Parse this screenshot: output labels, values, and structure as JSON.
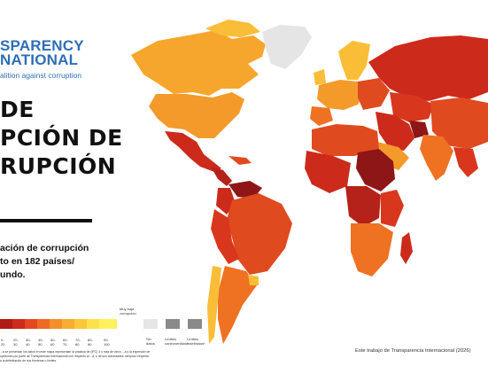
{
  "brand": {
    "line1": "SPARENCY",
    "line2": "NATIONAL",
    "tagline": "alition against corruption"
  },
  "title": {
    "line1": "DE",
    "line2": "PCIÓN DE",
    "line3": "RUPCIÓN"
  },
  "subtitle": {
    "line1": "ación de corrupción",
    "line2": "to en 182 países/",
    "line3": "undo."
  },
  "legend": {
    "tick_labels": [
      "0-20",
      "20-30",
      "30-40",
      "40-50",
      "50-60",
      "60-70",
      "70-80",
      "80-90",
      "90-100"
    ],
    "colors": [
      "#b11a17",
      "#cf2a1c",
      "#e5481f",
      "#ee6b22",
      "#f48f28",
      "#f8ad30",
      "#fbc83a",
      "#fde14a",
      "#fff05e"
    ],
    "high_label_line1": "Muy baja",
    "high_label_line2": "corrupción",
    "no_data_label_line1": "Sin",
    "no_data_label_line2": "datos",
    "no_data_color": "#e5e5e5",
    "disputed_label_line1": "Límites",
    "disputed_label_line2": "controvertidos*",
    "undefined_label_line1": "Límites",
    "undefined_label_line2": "indefinidos*"
  },
  "footnote": "...a se presentan los datos en este mapa representan la práctica de (IPC) 4 o más de cinco ...a o la expresión de opiniones por parte de Transparencia Internacional con respecto al ...a, o de sus autoridades; tampoco respecto a la delimitación de sus fronteras o límites.",
  "credit": "Este trabajo de Transparencia Internacional (2026)",
  "map_colors": {
    "very_high": "#9e1b1b",
    "high": "#cc2a1b",
    "mid_high": "#e04a1f",
    "mid": "#ee7222",
    "mid_low": "#f49a2a",
    "low": "#f9bd37",
    "no_data": "#e5e5e5"
  }
}
